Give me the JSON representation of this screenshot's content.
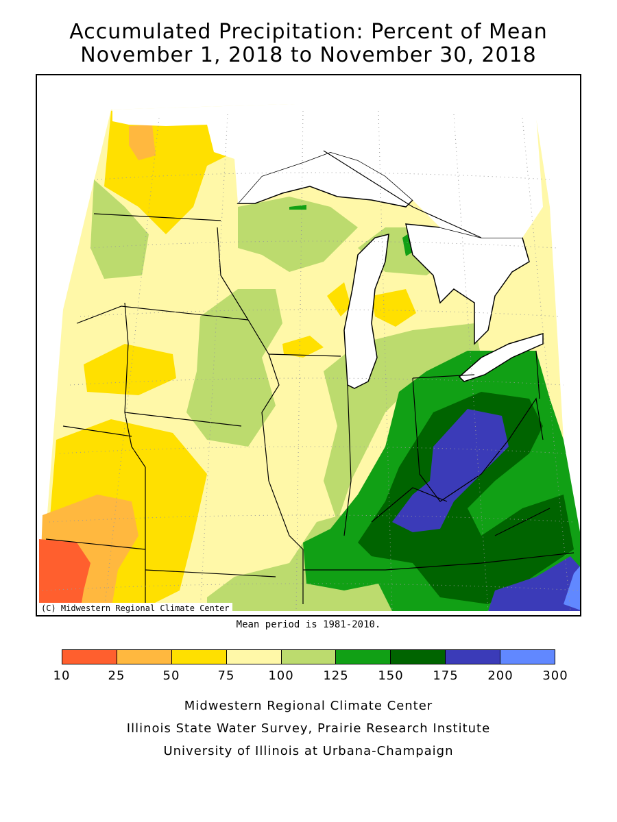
{
  "title_line1": "Accumulated Precipitation: Percent of Mean",
  "title_line2": "November 1, 2018 to November 30, 2018",
  "map_copyright": "(C) Midwestern Regional Climate Center",
  "mean_period_note": "Mean period is 1981-2010.",
  "legend": {
    "ticks": [
      "10",
      "25",
      "50",
      "75",
      "100",
      "125",
      "150",
      "175",
      "200",
      "300"
    ],
    "colors": [
      "#ff5f2e",
      "#ffb83f",
      "#ffe000",
      "#fff8a8",
      "#bcdb6e",
      "#11a015",
      "#006400",
      "#3b3bb8",
      "#6188ff"
    ]
  },
  "credits": [
    "Midwestern Regional Climate Center",
    "Illinois State Water Survey, Prairie Research Institute",
    "University of Illinois at Urbana-Champaign"
  ]
}
